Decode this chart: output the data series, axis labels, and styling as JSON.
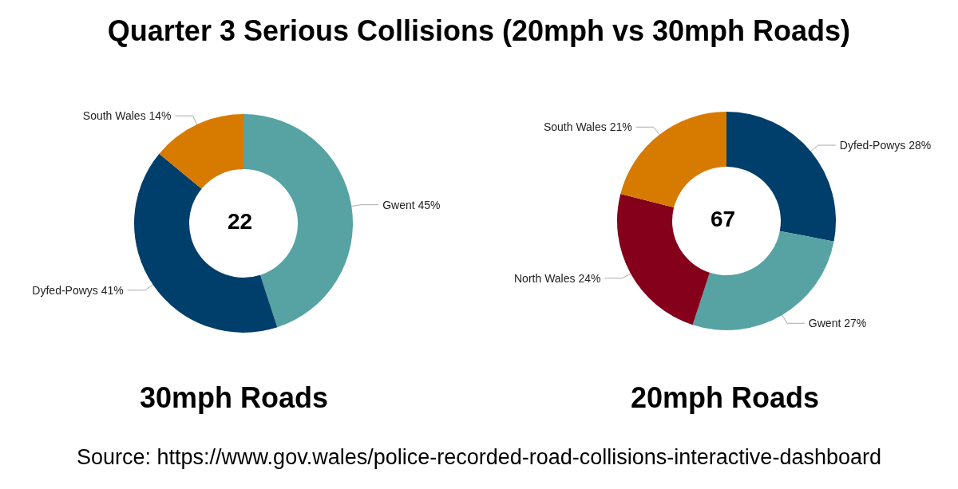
{
  "chart_data": [
    {
      "type": "donut",
      "title": "Quarter 3 Serious Collisions (20mph vs 30mph Roads)",
      "xlabel": "30mph Roads",
      "categories": [
        "Gwent",
        "Dyfed-Powys",
        "South Wales"
      ],
      "values": [
        45,
        41,
        14
      ],
      "value_labels": [
        "45%",
        "41%",
        "14%"
      ],
      "colors": [
        "#57a3a4",
        "#003e6b",
        "#d77b00"
      ],
      "annotations": [
        "22"
      ],
      "legend": false
    },
    {
      "type": "donut",
      "xlabel": "20mph Roads",
      "categories": [
        "Dyfed-Powys",
        "Gwent",
        "North Wales",
        "South Wales"
      ],
      "values": [
        28,
        27,
        24,
        21
      ],
      "value_labels": [
        "28%",
        "27%",
        "24%",
        "21%"
      ],
      "colors": [
        "#003e6b",
        "#57a3a4",
        "#84001b",
        "#d77b00"
      ],
      "annotations": [
        "67",
        "Source:  https://www.gov.wales/police-recorded-road-collisions-interactive-dashboard"
      ],
      "legend": false
    }
  ]
}
